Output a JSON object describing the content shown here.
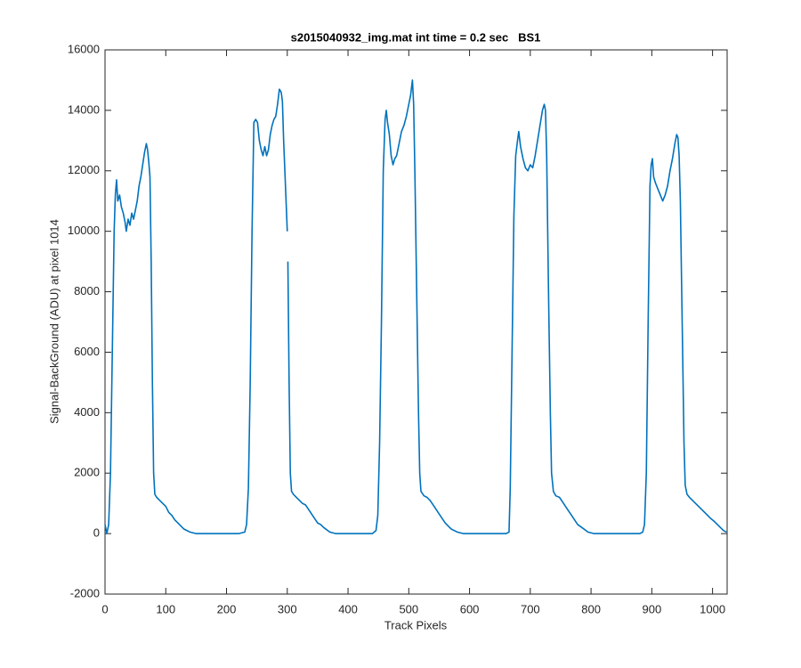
{
  "chart_data": {
    "type": "line",
    "title": "s2015040932_img.mat int time = 0.2 sec   BS1",
    "xlabel": "Track Pixels",
    "ylabel": "Signal-BackGround (ADU) at pixel 1014",
    "xlim": [
      0,
      1024
    ],
    "ylim": [
      -2000,
      16000
    ],
    "xticks": [
      0,
      100,
      200,
      300,
      400,
      500,
      600,
      700,
      800,
      900,
      1000
    ],
    "yticks": [
      -2000,
      0,
      2000,
      4000,
      6000,
      8000,
      10000,
      12000,
      14000,
      16000
    ],
    "grid": false,
    "x": [
      0,
      3,
      6,
      9,
      12,
      15,
      17,
      19,
      21,
      24,
      27,
      30,
      33,
      35,
      38,
      41,
      44,
      47,
      50,
      53,
      56,
      59,
      62,
      65,
      68,
      70,
      72,
      74,
      76,
      78,
      80,
      82,
      85,
      90,
      95,
      100,
      105,
      110,
      115,
      120,
      125,
      130,
      140,
      150,
      160,
      180,
      200,
      220,
      230,
      233,
      236,
      239,
      242,
      245,
      248,
      251,
      254,
      257,
      260,
      263,
      266,
      269,
      272,
      275,
      278,
      281,
      284,
      287,
      290,
      292,
      294,
      297,
      300,
      300.5,
      301,
      303,
      305,
      307,
      310,
      315,
      320,
      325,
      330,
      335,
      340,
      345,
      350,
      355,
      360,
      370,
      380,
      400,
      420,
      440,
      446,
      449,
      452,
      455,
      458,
      461,
      463,
      465,
      468,
      471,
      474,
      477,
      480,
      484,
      488,
      492,
      496,
      500,
      503,
      506,
      508,
      510,
      513,
      516,
      518,
      520,
      525,
      530,
      535,
      540,
      545,
      550,
      555,
      560,
      565,
      570,
      580,
      590,
      610,
      640,
      660,
      665,
      667,
      670,
      673,
      676,
      679,
      681,
      684,
      688,
      692,
      696,
      700,
      704,
      708,
      712,
      716,
      720,
      723,
      725,
      727,
      730,
      733,
      735,
      738,
      742,
      748,
      753,
      758,
      763,
      768,
      773,
      778,
      785,
      795,
      805,
      830,
      860,
      880,
      885,
      888,
      891,
      894,
      897,
      899,
      901,
      903,
      906,
      910,
      914,
      918,
      922,
      926,
      930,
      934,
      938,
      941,
      943,
      945,
      947,
      950,
      953,
      955,
      958,
      962,
      967,
      972,
      977,
      982,
      987,
      992,
      997,
      1003,
      1008,
      1013,
      1018,
      1023
    ],
    "series": [
      {
        "name": "BS1",
        "color": "#0072bd",
        "values": [
          300,
          0,
          300,
          2000,
          6000,
          10000,
          11200,
          11700,
          11000,
          11200,
          10800,
          10600,
          10300,
          10000,
          10400,
          10200,
          10600,
          10400,
          10700,
          11000,
          11500,
          11800,
          12200,
          12600,
          12900,
          12700,
          12300,
          11800,
          9000,
          5000,
          2000,
          1300,
          1200,
          1100,
          1000,
          900,
          700,
          600,
          450,
          350,
          250,
          150,
          50,
          0,
          0,
          0,
          0,
          0,
          50,
          300,
          1500,
          5000,
          10000,
          13600,
          13700,
          13600,
          13000,
          12700,
          12500,
          12800,
          12500,
          12700,
          13200,
          13500,
          13700,
          13800,
          14200,
          14700,
          14600,
          14300,
          13000,
          11500,
          10000,
          null,
          9000,
          5000,
          2000,
          1400,
          1300,
          1200,
          1100,
          1000,
          950,
          800,
          650,
          500,
          350,
          300,
          200,
          50,
          0,
          0,
          0,
          0,
          100,
          600,
          3000,
          7000,
          12000,
          13700,
          14000,
          13600,
          13200,
          12500,
          12200,
          12400,
          12500,
          12900,
          13300,
          13500,
          13800,
          14200,
          14500,
          15000,
          14200,
          12000,
          8000,
          4000,
          2000,
          1400,
          1250,
          1200,
          1100,
          950,
          800,
          650,
          500,
          350,
          250,
          150,
          50,
          0,
          0,
          0,
          0,
          50,
          1500,
          6000,
          10500,
          12500,
          13000,
          13300,
          12800,
          12400,
          12100,
          12000,
          12200,
          12100,
          12500,
          13000,
          13500,
          14000,
          14200,
          14000,
          12500,
          8000,
          4000,
          2000,
          1400,
          1250,
          1200,
          1050,
          900,
          750,
          600,
          450,
          300,
          200,
          50,
          0,
          0,
          0,
          0,
          50,
          300,
          2000,
          7000,
          11500,
          12200,
          12400,
          11800,
          11600,
          11400,
          11200,
          11000,
          11200,
          11500,
          12000,
          12400,
          12900,
          13200,
          13100,
          12500,
          11000,
          7000,
          3000,
          1600,
          1300,
          1200,
          1100,
          1000,
          900,
          800,
          700,
          600,
          500,
          400,
          300,
          200,
          100,
          50
        ]
      }
    ]
  }
}
